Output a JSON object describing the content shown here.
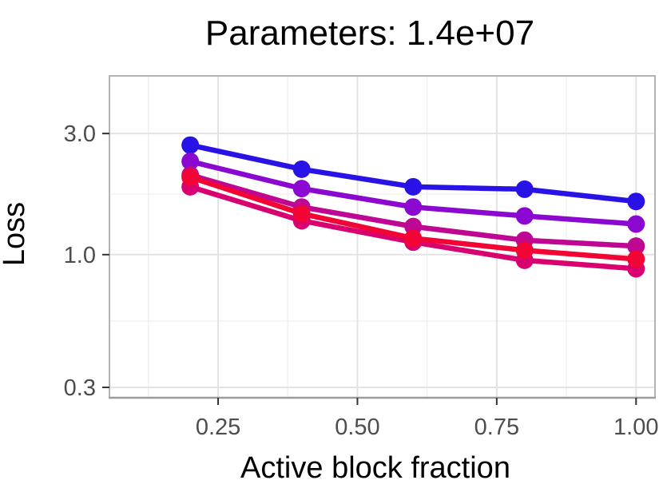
{
  "chart_data": {
    "type": "line",
    "title": "Parameters: 1.4e+07",
    "xlabel": "Active block fraction",
    "ylabel": "Loss",
    "legend": "none",
    "grid": true,
    "x": [
      0.2,
      0.4,
      0.6,
      0.8,
      1.0
    ],
    "series": [
      {
        "name": "blue",
        "color": "#2912E6",
        "values": [
          2.7,
          2.17,
          1.85,
          1.81,
          1.62
        ]
      },
      {
        "name": "purple",
        "color": "#8A08D0",
        "values": [
          2.33,
          1.82,
          1.54,
          1.42,
          1.32
        ]
      },
      {
        "name": "dark-magenta",
        "color": "#BE0792",
        "values": [
          2.06,
          1.54,
          1.29,
          1.14,
          1.08
        ]
      },
      {
        "name": "pink-magenta",
        "color": "#D90070",
        "values": [
          1.85,
          1.36,
          1.12,
          0.95,
          0.88
        ]
      },
      {
        "name": "red",
        "color": "#F20534",
        "values": [
          2.02,
          1.45,
          1.16,
          1.04,
          0.96
        ]
      }
    ],
    "x_axis": {
      "label": "Active block fraction",
      "scale": "linear",
      "range": [
        0.055,
        1.034
      ],
      "ticks": [
        0.25,
        0.5,
        0.75,
        1.0
      ],
      "tick_labels": [
        "0.25",
        "0.50",
        "0.75",
        "1.00"
      ],
      "minor_gridlines": [
        0.125,
        0.375,
        0.625,
        0.875
      ]
    },
    "y_axis": {
      "label": "Loss",
      "scale": "log10",
      "range": [
        0.273,
        5.06
      ],
      "ticks": [
        3.0,
        1.0,
        0.3
      ],
      "tick_labels": [
        "3.0",
        "1.0",
        "0.3"
      ],
      "minor_gridlines": [
        5.477,
        1.732,
        0.548
      ]
    },
    "colors": {
      "background": "#FFFFFF",
      "panel_background": "#FFFFFF",
      "grid_major": "#E3E3E3",
      "grid_minor": "#F0F0F0",
      "panel_border": "#B3B3B3",
      "axis_line_bottom": "#9C9C9C",
      "tick_mark": "#333333",
      "tick_label": "#4D4D4D",
      "title_text": "#000000",
      "axis_title_text": "#000000"
    }
  }
}
